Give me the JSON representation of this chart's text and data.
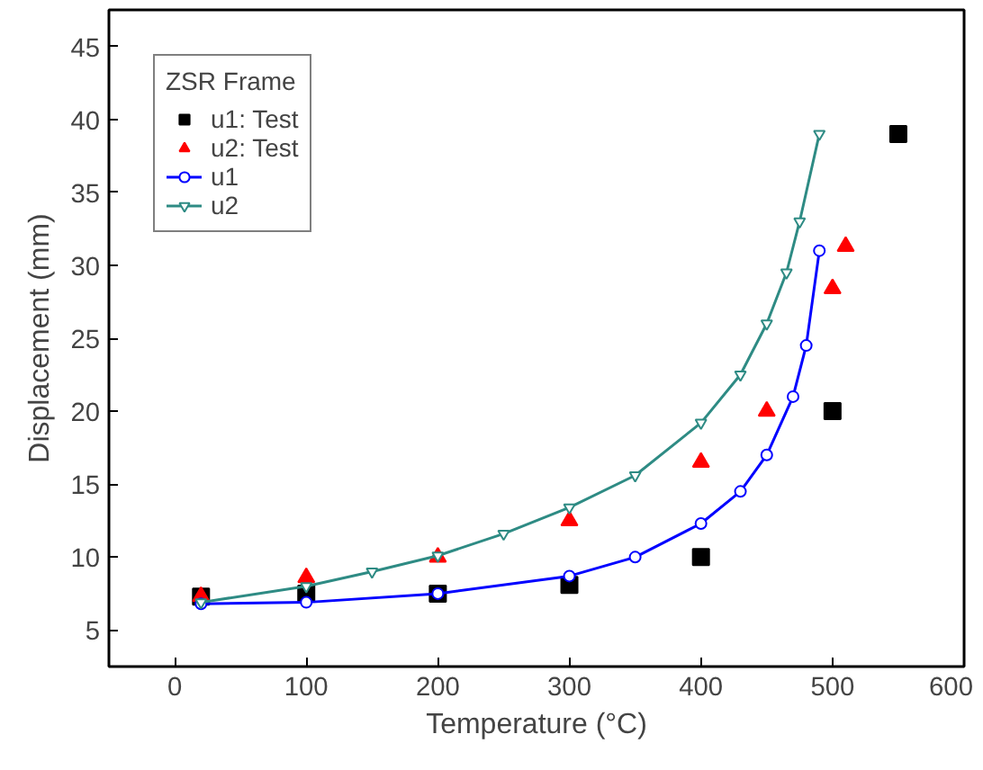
{
  "chart_data": {
    "type": "scatter",
    "xlabel": "Temperature (°C)",
    "ylabel": "Displacement (mm)",
    "legend_title": "ZSR Frame",
    "legend": "top left",
    "grid": false,
    "xlim": [
      -50,
      600
    ],
    "xticks": [
      0,
      100,
      200,
      300,
      400,
      500,
      600
    ],
    "ylim": [
      2.5,
      47.5
    ],
    "yticks": [
      5,
      10,
      15,
      20,
      25,
      30,
      35,
      40,
      45
    ],
    "series": [
      {
        "name": "u1: Test",
        "marker": "square",
        "color": "#000000",
        "x": [
          20,
          100,
          200,
          300,
          400,
          500,
          550
        ],
        "values": [
          7.3,
          7.5,
          7.5,
          8.1,
          10,
          20,
          39
        ]
      },
      {
        "name": "u2: Test",
        "marker": "triangle",
        "color": "#ff0000",
        "x": [
          20,
          100,
          200,
          300,
          400,
          450,
          500,
          510
        ],
        "values": [
          7.3,
          8.6,
          10,
          12.5,
          16.5,
          20,
          28.4,
          31.3
        ]
      },
      {
        "name": "u1",
        "type": "line",
        "marker": "circle",
        "color": "#0000ff",
        "x": [
          20,
          100,
          200,
          300,
          350,
          400,
          430,
          450,
          470,
          480,
          490
        ],
        "values": [
          6.8,
          6.9,
          7.5,
          8.7,
          10,
          12.3,
          14.5,
          17,
          21,
          24.5,
          31
        ]
      },
      {
        "name": "u2",
        "type": "line",
        "marker": "triangle",
        "color": "#2e8b84",
        "x": [
          20,
          100,
          150,
          200,
          250,
          300,
          350,
          400,
          430,
          450,
          465,
          475,
          490
        ],
        "values": [
          6.9,
          8.0,
          9,
          10.1,
          11.6,
          13.4,
          15.6,
          19.2,
          22.5,
          26,
          29.5,
          33,
          39
        ]
      }
    ]
  }
}
